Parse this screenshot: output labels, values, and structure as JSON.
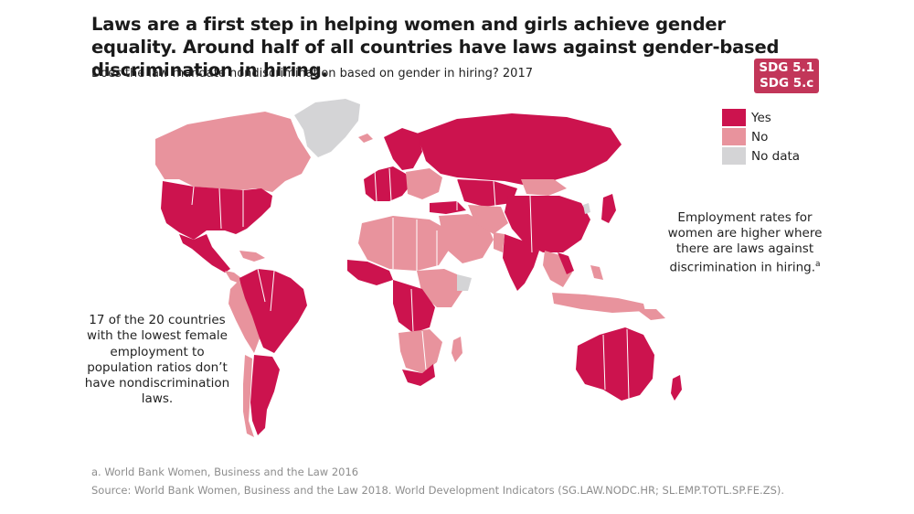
{
  "title": "Laws are a first step in helping women and girls achieve gender equality. Around half of all countries have laws against gender-based discrimination in hiring.",
  "subtitle": "Does the law mandate nondiscrimination based on gender in hiring? 2017",
  "sdg_badge": {
    "line1": "SDG 5.1",
    "line2": "SDG 5.c"
  },
  "legend": [
    {
      "label": "Yes",
      "color": "#cc134e"
    },
    {
      "label": "No",
      "color": "#e8939d"
    },
    {
      "label": "No data",
      "color": "#d4d4d6"
    }
  ],
  "annotation_right": "Employment rates for women are higher where there are laws against discrimination in hiring.",
  "annotation_right_superscript": "a",
  "annotation_left": "17 of the 20 countries with the lowest female employment to population ratios don’t have nondiscrimination laws.",
  "footnote": "a. World Bank Women, Business and the Law 2016",
  "source": "Source: World Bank Women, Business and the Law 2018. World Development Indicators (SG.LAW.NODC.HR; SL.EMP.TOTL.SP.FE.ZS).",
  "colors": {
    "yes": "#cc134e",
    "no": "#e8939d",
    "no_data": "#d4d4d6",
    "badge": "#c23659"
  }
}
